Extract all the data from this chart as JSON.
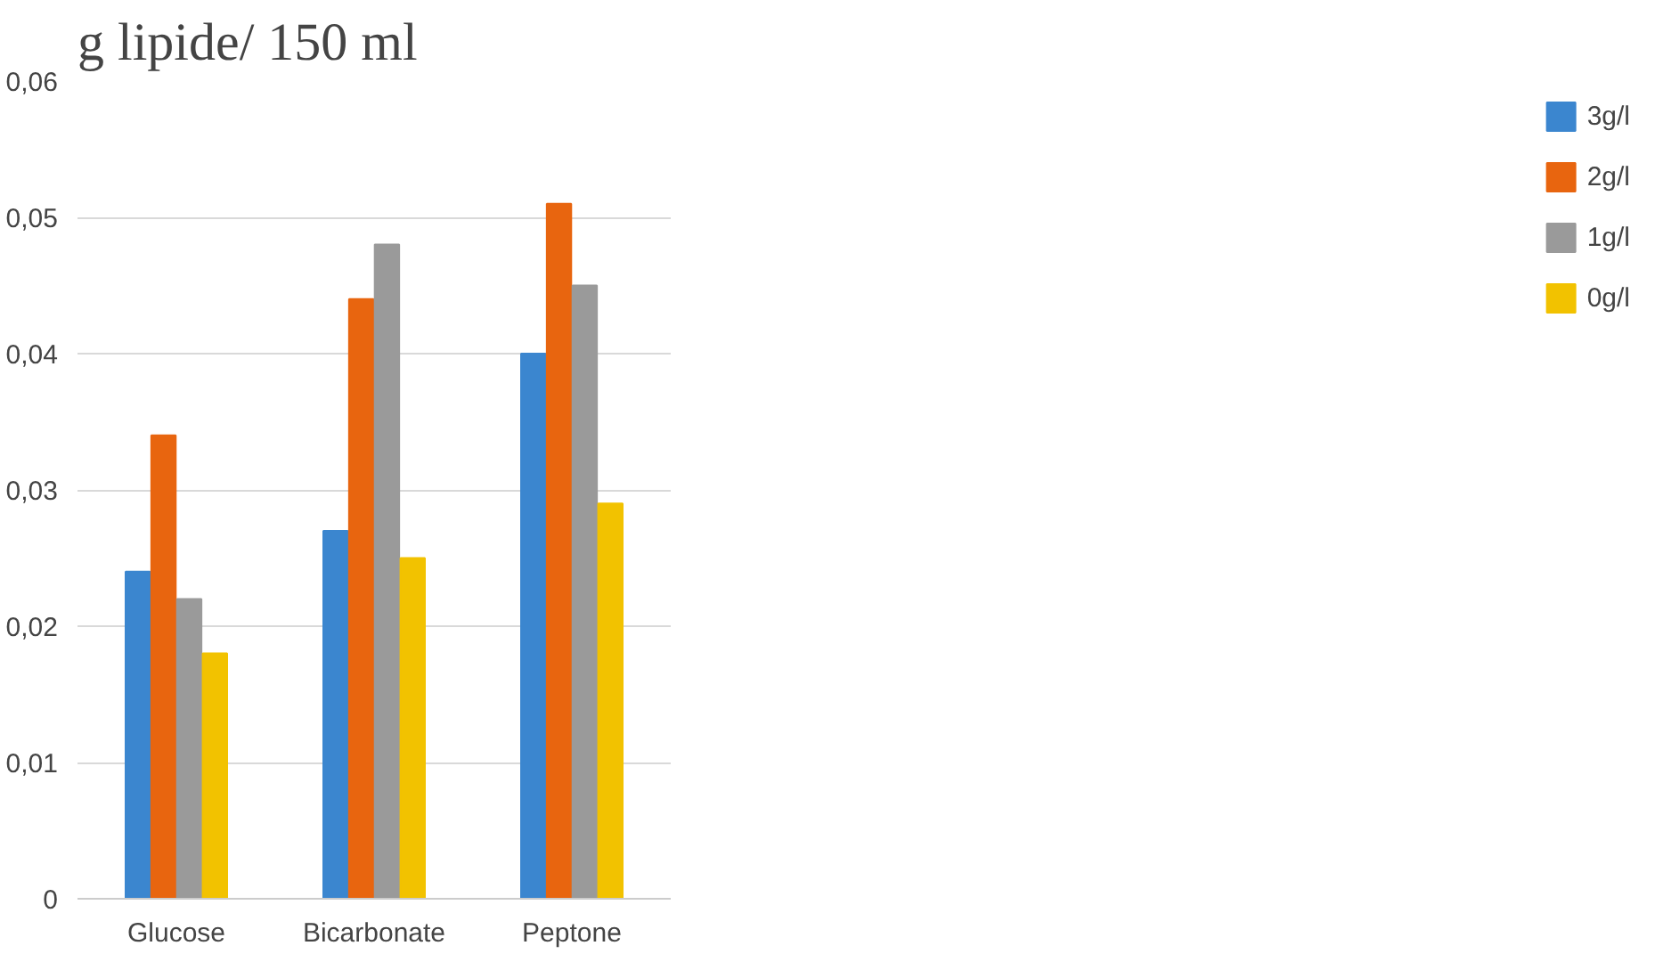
{
  "chart_data": {
    "type": "bar",
    "title": "g lipide/ 150 ml",
    "categories": [
      "Glucose",
      "Bicarbonate",
      "Peptone"
    ],
    "series": [
      {
        "name": "3g/l",
        "color": "#3b86cf",
        "values": [
          0.024,
          0.027,
          0.04
        ]
      },
      {
        "name": "2g/l",
        "color": "#e8650f",
        "values": [
          0.034,
          0.044,
          0.051
        ]
      },
      {
        "name": "1g/l",
        "color": "#9a9a9a",
        "values": [
          0.022,
          0.048,
          0.045
        ]
      },
      {
        "name": "0g/l",
        "color": "#f2c200",
        "values": [
          0.018,
          0.025,
          0.029
        ]
      }
    ],
    "ylim": [
      0,
      0.06
    ],
    "yticks": [
      {
        "value": 0,
        "label": "0"
      },
      {
        "value": 0.01,
        "label": "0,01"
      },
      {
        "value": 0.02,
        "label": "0,02"
      },
      {
        "value": 0.03,
        "label": "0,03"
      },
      {
        "value": 0.04,
        "label": "0,04"
      },
      {
        "value": 0.05,
        "label": "0,05"
      },
      {
        "value": 0.06,
        "label": "0,06"
      }
    ],
    "grid": "y",
    "legend": "right"
  }
}
